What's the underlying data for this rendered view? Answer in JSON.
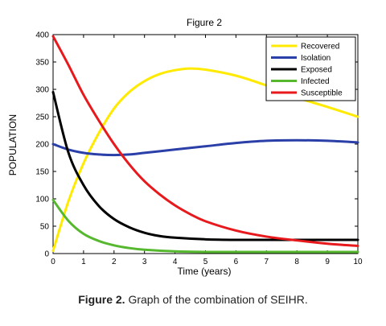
{
  "caption": {
    "label": "Figure 2.",
    "text": " Graph of the combination of SEIHR."
  },
  "chart_data": {
    "type": "line",
    "title": "Figure 2",
    "xlabel": "Time (years)",
    "ylabel": "POPULATION",
    "xlim": [
      0,
      10
    ],
    "ylim": [
      0,
      400
    ],
    "xticks": [
      0,
      1,
      2,
      3,
      4,
      5,
      6,
      7,
      8,
      9,
      10
    ],
    "yticks": [
      0,
      50,
      100,
      150,
      200,
      250,
      300,
      350,
      400
    ],
    "grid": false,
    "legend_position": "top-right",
    "series": [
      {
        "name": "Recovered",
        "color": "#ffea00",
        "x": [
          0,
          0.5,
          1,
          1.5,
          2,
          2.5,
          3,
          3.5,
          4,
          4.5,
          5,
          6,
          7,
          8,
          9,
          10
        ],
        "y": [
          5,
          95,
          165,
          220,
          265,
          295,
          315,
          328,
          335,
          338,
          336,
          325,
          307,
          285,
          268,
          250
        ]
      },
      {
        "name": "Isolation",
        "color": "#2b3fa8",
        "x": [
          0,
          0.5,
          1,
          1.5,
          2,
          2.5,
          3,
          3.5,
          4,
          5,
          6,
          7,
          8,
          9,
          10
        ],
        "y": [
          200,
          190,
          184,
          181,
          180,
          181,
          184,
          187,
          190,
          196,
          202,
          206,
          207,
          206,
          203
        ]
      },
      {
        "name": "Exposed",
        "color": "#000000",
        "x": [
          0,
          0.5,
          1,
          1.5,
          2,
          2.5,
          3,
          3.5,
          4,
          5,
          6,
          7,
          8,
          9,
          10
        ],
        "y": [
          295,
          185,
          125,
          87,
          63,
          48,
          38,
          32,
          29,
          26,
          25,
          25,
          25,
          25,
          25
        ]
      },
      {
        "name": "Infected",
        "color": "#55b82e",
        "x": [
          0,
          0.5,
          1,
          1.5,
          2,
          2.5,
          3,
          4,
          5,
          6,
          7,
          8,
          9,
          10
        ],
        "y": [
          98,
          60,
          36,
          23,
          15,
          10,
          7,
          4,
          3,
          3,
          3,
          3,
          3,
          3
        ]
      },
      {
        "name": "Susceptible",
        "color": "#e8191c",
        "x": [
          0,
          0.5,
          1,
          1.5,
          2,
          2.5,
          3,
          3.5,
          4,
          4.5,
          5,
          6,
          7,
          8,
          9,
          10
        ],
        "y": [
          397,
          345,
          290,
          243,
          200,
          163,
          132,
          108,
          88,
          72,
          59,
          42,
          31,
          24,
          18,
          14
        ]
      }
    ]
  }
}
